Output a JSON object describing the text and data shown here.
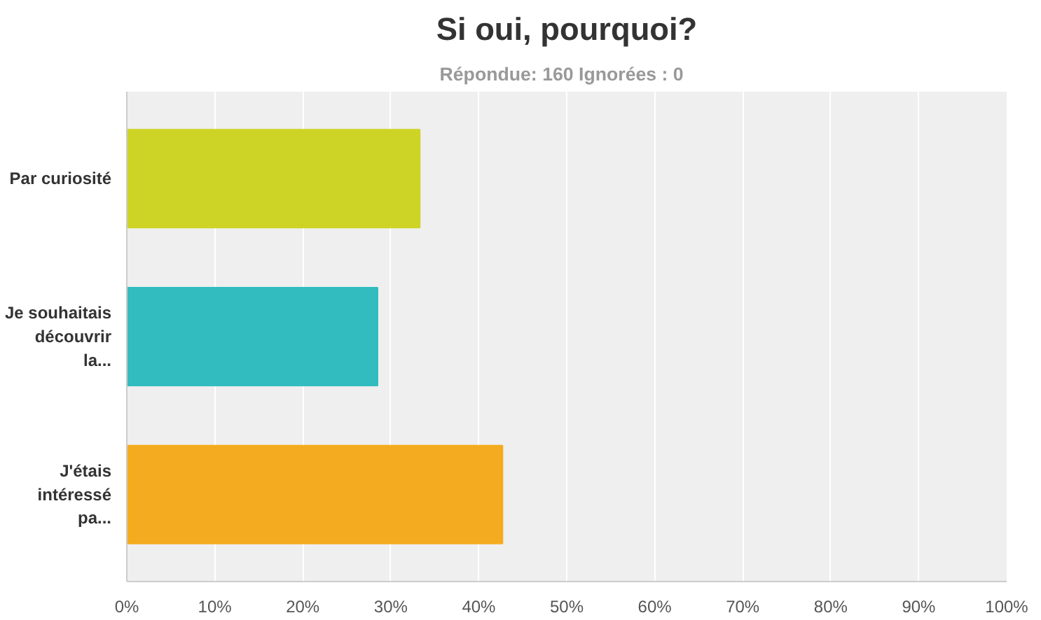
{
  "chart_data": {
    "type": "bar",
    "orientation": "horizontal",
    "title": "Si oui, pourquoi?",
    "subtitle": "Répondue: 160   Ignorées : 0",
    "categories": [
      "Par curiosité",
      "Je souhaitais découvrir la...",
      "J'étais intéressé pa..."
    ],
    "values": [
      33.3,
      28.5,
      42.7
    ],
    "colors": [
      "#cdd425",
      "#33bcbf",
      "#f5ab1f"
    ],
    "xlim": [
      0,
      100
    ],
    "xticks": [
      {
        "value": 0,
        "label": "0%"
      },
      {
        "value": 10,
        "label": "10%"
      },
      {
        "value": 20,
        "label": "20%"
      },
      {
        "value": 30,
        "label": "30%"
      },
      {
        "value": 40,
        "label": "40%"
      },
      {
        "value": 50,
        "label": "50%"
      },
      {
        "value": 60,
        "label": "60%"
      },
      {
        "value": 70,
        "label": "70%"
      },
      {
        "value": 80,
        "label": "80%"
      },
      {
        "value": 90,
        "label": "90%"
      },
      {
        "value": 100,
        "label": "100%"
      }
    ],
    "grid": "x"
  }
}
